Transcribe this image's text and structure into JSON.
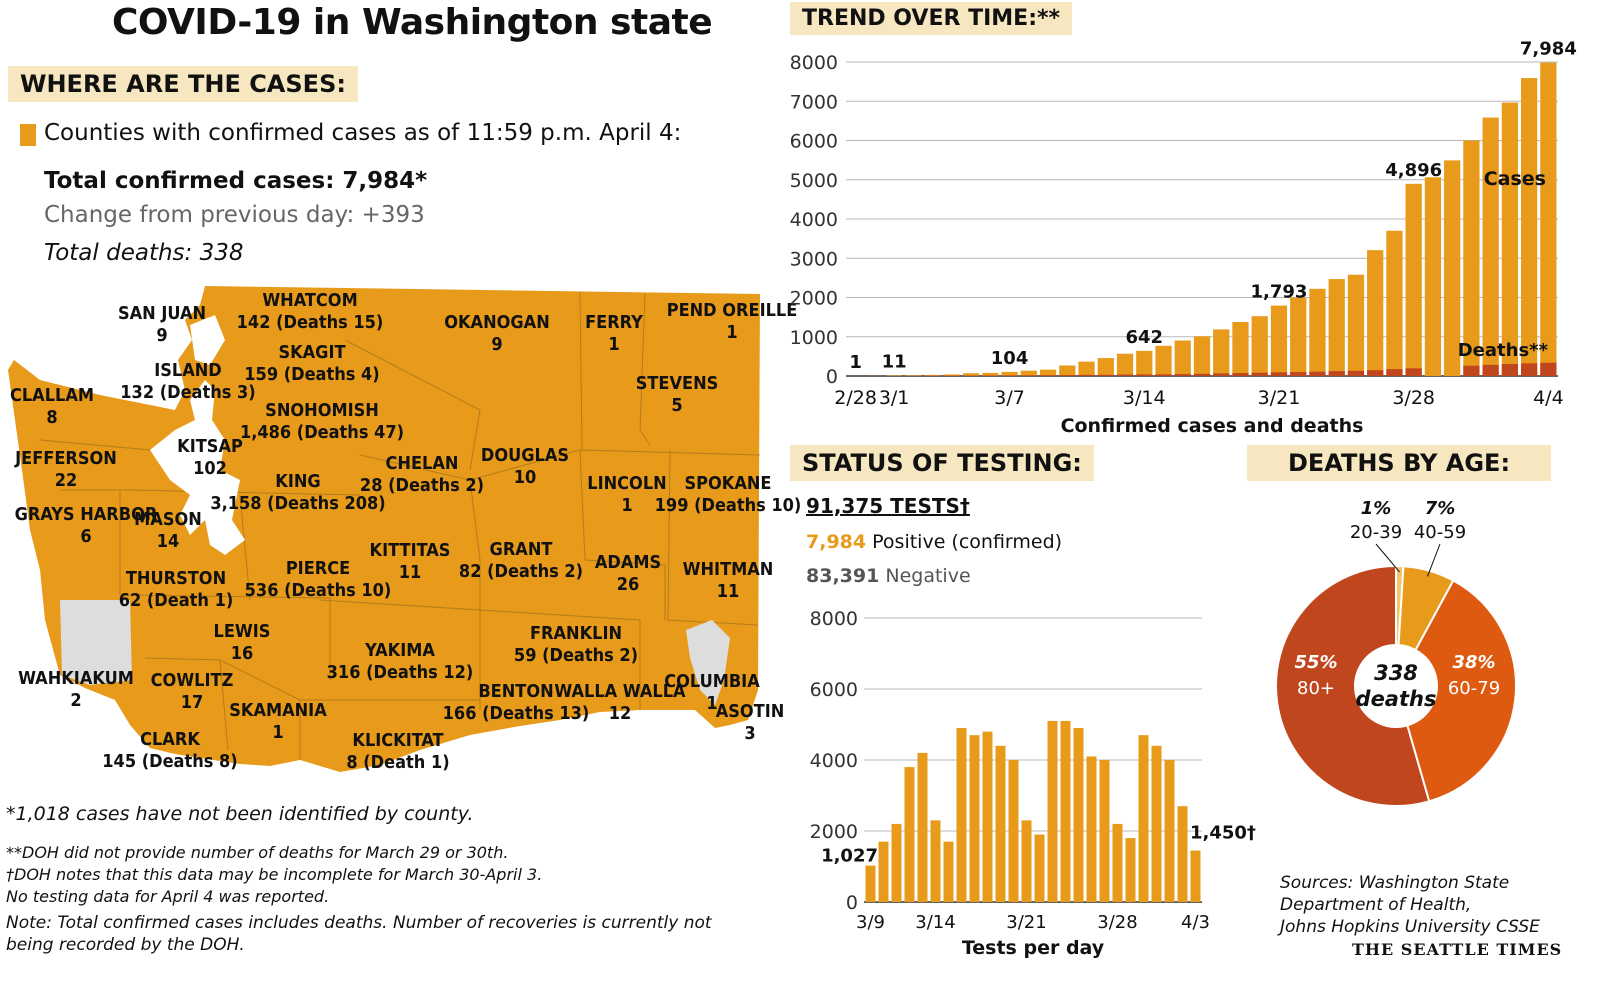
{
  "title": "COVID-19 in Washington state",
  "where": {
    "header": "WHERE ARE THE CASES:",
    "legend_label": "Counties with confirmed cases as of 11:59 p.m. April 4:",
    "total_cases": "Total confirmed cases: 7,984*",
    "change": "Change from previous day: +393",
    "deaths": "Total deaths: 338"
  },
  "colors": {
    "cases": "#e89a1a",
    "deaths": "#c0461d",
    "age_60_79": "#dd5a10",
    "header_bg": "#f6e7c1",
    "water_gray": "#dddddd"
  },
  "counties": [
    {
      "name": "WHATCOM",
      "value": "142 (Deaths 15)"
    },
    {
      "name": "SAN JUAN",
      "value": "9"
    },
    {
      "name": "SKAGIT",
      "value": "159 (Deaths 4)"
    },
    {
      "name": "ISLAND",
      "value": "132 (Deaths 3)"
    },
    {
      "name": "CLALLAM",
      "value": "8"
    },
    {
      "name": "SNOHOMISH",
      "value": "1,486 (Deaths 47)"
    },
    {
      "name": "KITSAP",
      "value": "102"
    },
    {
      "name": "JEFFERSON",
      "value": "22"
    },
    {
      "name": "KING",
      "value": "3,158 (Deaths 208)"
    },
    {
      "name": "GRAYS HARBOR",
      "value": "6"
    },
    {
      "name": "MASON",
      "value": "14"
    },
    {
      "name": "THURSTON",
      "value": "62 (Death 1)"
    },
    {
      "name": "PIERCE",
      "value": "536 (Deaths 10)"
    },
    {
      "name": "LEWIS",
      "value": "16"
    },
    {
      "name": "WAHKIAKUM",
      "value": "2"
    },
    {
      "name": "COWLITZ",
      "value": "17"
    },
    {
      "name": "SKAMANIA",
      "value": "1"
    },
    {
      "name": "CLARK",
      "value": "145 (Deaths 8)"
    },
    {
      "name": "OKANOGAN",
      "value": "9"
    },
    {
      "name": "FERRY",
      "value": "1"
    },
    {
      "name": "PEND OREILLE",
      "value": "1"
    },
    {
      "name": "STEVENS",
      "value": "5"
    },
    {
      "name": "CHELAN",
      "value": "28 (Deaths 2)"
    },
    {
      "name": "DOUGLAS",
      "value": "10"
    },
    {
      "name": "LINCOLN",
      "value": "1"
    },
    {
      "name": "SPOKANE",
      "value": "199 (Deaths 10)"
    },
    {
      "name": "KITTITAS",
      "value": "11"
    },
    {
      "name": "GRANT",
      "value": "82 (Deaths 2)"
    },
    {
      "name": "ADAMS",
      "value": "26"
    },
    {
      "name": "WHITMAN",
      "value": "11"
    },
    {
      "name": "YAKIMA",
      "value": "316 (Deaths 12)"
    },
    {
      "name": "FRANKLIN",
      "value": "59 (Deaths 2)"
    },
    {
      "name": "BENTON",
      "value": "166 (Deaths 13)"
    },
    {
      "name": "WALLA WALLA",
      "value": "12"
    },
    {
      "name": "COLUMBIA",
      "value": "1"
    },
    {
      "name": "ASOTIN",
      "value": "3"
    },
    {
      "name": "KLICKITAT",
      "value": "8 (Death 1)"
    }
  ],
  "notes": [
    "*1,018 cases have not been identified by county.",
    "**DOH did not provide number of deaths for March 29 or 30th.",
    "†DOH notes that this data may be incomplete for March 30-April 3.",
    "No testing data for April 4 was reported.",
    "Note: Total confirmed cases includes deaths. Number of recoveries is currently not",
    "being recorded by the DOH."
  ],
  "trend": {
    "header": "TREND OVER TIME:**",
    "xlabel": "Confirmed cases and deaths",
    "series_labels": {
      "cases": "Cases",
      "deaths": "Deaths**"
    }
  },
  "testing": {
    "header": "STATUS OF TESTING:",
    "total": "91,375 TESTS†",
    "positive_value": "7,984",
    "positive_label": " Positive (confirmed)",
    "negative_value": "83,391",
    "negative_label": " Negative",
    "xlabel": "Tests per day"
  },
  "age": {
    "header": "DEATHS BY AGE:",
    "center_value": "338",
    "center_label": "deaths"
  },
  "sources": [
    "Sources: Washington State",
    "Department of Health,",
    "Johns Hopkins University CSSE"
  ],
  "credit": "THE SEATTLE TIMES",
  "chart_data": [
    {
      "type": "bar",
      "title": "TREND OVER TIME:**",
      "xlabel": "Confirmed cases and deaths",
      "x_tick_labels": [
        "2/28",
        "3/1",
        "3/7",
        "3/14",
        "3/21",
        "3/28",
        "4/4"
      ],
      "ylim": [
        0,
        8000
      ],
      "y_ticks": [
        0,
        1000,
        2000,
        3000,
        4000,
        5000,
        6000,
        7000,
        8000
      ],
      "categories": [
        "2/28",
        "2/29",
        "3/1",
        "3/2",
        "3/3",
        "3/4",
        "3/5",
        "3/6",
        "3/7",
        "3/8",
        "3/9",
        "3/10",
        "3/11",
        "3/12",
        "3/13",
        "3/14",
        "3/15",
        "3/16",
        "3/17",
        "3/18",
        "3/19",
        "3/20",
        "3/21",
        "3/22",
        "3/23",
        "3/24",
        "3/25",
        "3/26",
        "3/27",
        "3/28",
        "3/29",
        "3/30",
        "3/31",
        "4/1",
        "4/2",
        "4/3",
        "4/4"
      ],
      "series": [
        {
          "name": "Cases",
          "values": [
            1,
            3,
            11,
            18,
            27,
            39,
            70,
            79,
            104,
            136,
            162,
            267,
            366,
            457,
            568,
            642,
            769,
            904,
            1012,
            1187,
            1376,
            1524,
            1793,
            1996,
            2221,
            2469,
            2580,
            3207,
            3700,
            4896,
            5062,
            5494,
            6000,
            6585,
            6966,
            7591,
            7984
          ]
        },
        {
          "name": "Deaths**",
          "values": [
            0,
            1,
            1,
            6,
            9,
            10,
            11,
            13,
            16,
            18,
            22,
            24,
            29,
            31,
            37,
            40,
            42,
            48,
            55,
            66,
            74,
            83,
            94,
            100,
            110,
            123,
            132,
            147,
            175,
            195,
            null,
            null,
            262,
            284,
            306,
            323,
            338
          ]
        }
      ],
      "data_labels": [
        {
          "x": "2/28",
          "value": "1"
        },
        {
          "x": "3/1",
          "value": "11"
        },
        {
          "x": "3/7",
          "value": "104"
        },
        {
          "x": "3/14",
          "value": "642"
        },
        {
          "x": "3/21",
          "value": "1,793"
        },
        {
          "x": "3/28",
          "value": "4,896"
        },
        {
          "x": "4/4",
          "value": "7,984"
        }
      ],
      "grid": true
    },
    {
      "type": "bar",
      "xlabel": "Tests per day",
      "x_tick_labels": [
        "3/9",
        "3/14",
        "3/21",
        "3/28",
        "4/3"
      ],
      "ylim": [
        0,
        8000
      ],
      "y_ticks": [
        0,
        2000,
        4000,
        6000,
        8000
      ],
      "categories": [
        "3/9",
        "3/10",
        "3/11",
        "3/12",
        "3/13",
        "3/14",
        "3/15",
        "3/16",
        "3/17",
        "3/18",
        "3/19",
        "3/20",
        "3/21",
        "3/22",
        "3/23",
        "3/24",
        "3/25",
        "3/26",
        "3/27",
        "3/28",
        "3/29",
        "3/30",
        "3/31",
        "4/1",
        "4/2",
        "4/3"
      ],
      "values": [
        1027,
        1700,
        2200,
        3800,
        4200,
        2300,
        1700,
        4900,
        4700,
        4800,
        4400,
        4000,
        2300,
        1900,
        5100,
        5100,
        4900,
        4100,
        4000,
        2200,
        1800,
        4700,
        4400,
        4000,
        2700,
        1450
      ],
      "data_labels": [
        {
          "x": "3/9",
          "value": "1,027"
        },
        {
          "x": "4/3",
          "value": "1,450†"
        }
      ],
      "grid": true
    },
    {
      "type": "pie",
      "title": "DEATHS BY AGE:",
      "slices": [
        {
          "label": "20-39",
          "percent": "1%",
          "value": 1
        },
        {
          "label": "40-59",
          "percent": "7%",
          "value": 7
        },
        {
          "label": "60-79",
          "percent": "38%",
          "value": 38
        },
        {
          "label": "80+",
          "percent": "55%",
          "value": 55
        }
      ]
    }
  ]
}
